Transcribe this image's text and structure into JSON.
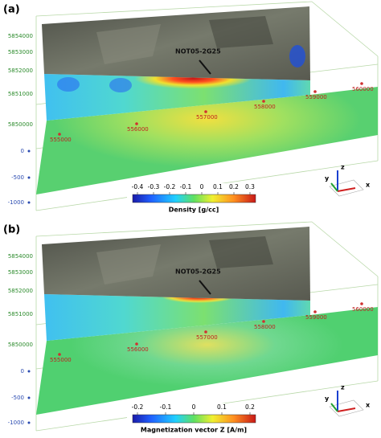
{
  "panels": [
    {
      "label": "(a)",
      "northing": [
        "5854000",
        "5853000",
        "5852000",
        "5851000",
        "5850000"
      ],
      "depth": [
        "0",
        "-500",
        "-1000"
      ],
      "easting": [
        "555000",
        "556000",
        "557000",
        "558000",
        "559000",
        "560000"
      ],
      "well": "NOT05-2G25",
      "colorbar": {
        "ticks": [
          "-0.4",
          "-0.3",
          "-0.2",
          "-0.1",
          "0",
          "0.1",
          "0.2",
          "0.3"
        ],
        "title": "Density [g/cc]"
      },
      "triad": [
        "z",
        "y",
        "x"
      ]
    },
    {
      "label": "(b)",
      "northing": [
        "5854000",
        "5853000",
        "5852000",
        "5851000",
        "5850000"
      ],
      "depth": [
        "0",
        "-500",
        "-1000"
      ],
      "easting": [
        "555000",
        "556000",
        "557000",
        "558000",
        "559000",
        "560000"
      ],
      "well": "NOT05-2G25",
      "colorbar": {
        "ticks": [
          "-0.2",
          "-0.1",
          "0",
          "0.1",
          "0.2"
        ],
        "title": "Magnetization vector Z [A/m]"
      },
      "triad": [
        "z",
        "y",
        "x"
      ]
    }
  ]
}
